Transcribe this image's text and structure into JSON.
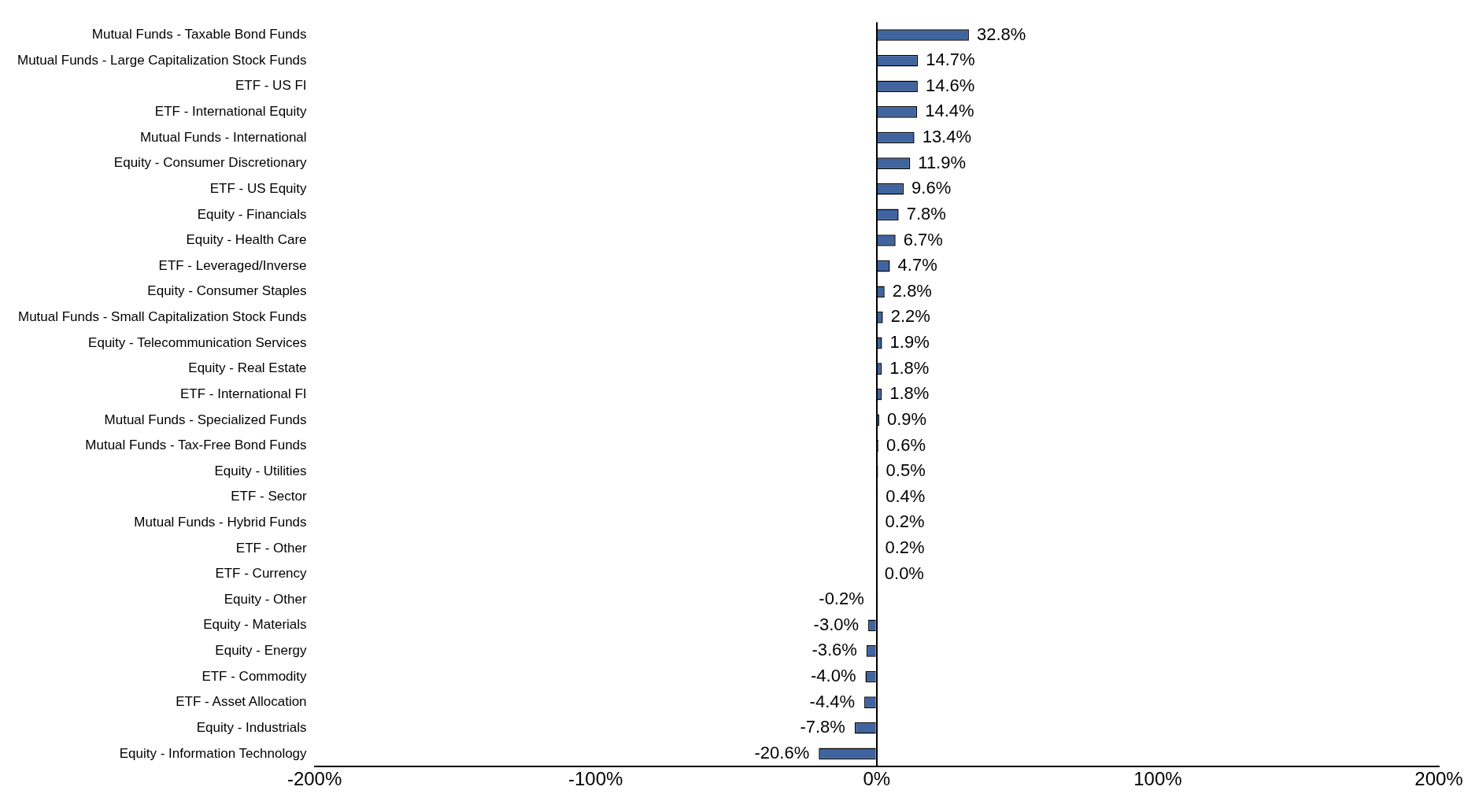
{
  "chart_data": {
    "type": "bar",
    "orientation": "horizontal",
    "categories": [
      "Mutual Funds - Taxable Bond Funds",
      "Mutual Funds - Large Capitalization Stock Funds",
      "ETF - US FI",
      "ETF - International Equity",
      "Mutual Funds - International",
      "Equity - Consumer Discretionary",
      "ETF - US Equity",
      "Equity - Financials",
      "Equity - Health Care",
      "ETF - Leveraged/Inverse",
      "Equity - Consumer Staples",
      "Mutual Funds - Small Capitalization Stock Funds",
      "Equity - Telecommunication Services",
      "Equity - Real Estate",
      "ETF - International FI",
      "Mutual Funds - Specialized Funds",
      "Mutual Funds - Tax-Free Bond Funds",
      "Equity - Utilities",
      "ETF - Sector",
      "Mutual Funds - Hybrid Funds",
      "ETF - Other",
      "ETF - Currency",
      "Equity - Other",
      "Equity - Materials",
      "Equity - Energy",
      "ETF - Commodity",
      "ETF - Asset Allocation",
      "Equity - Industrials",
      "Equity - Information Technology"
    ],
    "values": [
      32.8,
      14.7,
      14.6,
      14.4,
      13.4,
      11.9,
      9.6,
      7.8,
      6.7,
      4.7,
      2.8,
      2.2,
      1.9,
      1.8,
      1.8,
      0.9,
      0.6,
      0.5,
      0.4,
      0.2,
      0.2,
      0.0,
      -0.2,
      -3.0,
      -3.6,
      -4.0,
      -4.4,
      -7.8,
      -20.6
    ],
    "value_labels": [
      "32.8%",
      "14.7%",
      "14.6%",
      "14.4%",
      "13.4%",
      "11.9%",
      "9.6%",
      "7.8%",
      "6.7%",
      "4.7%",
      "2.8%",
      "2.2%",
      "1.9%",
      "1.8%",
      "1.8%",
      "0.9%",
      "0.6%",
      "0.5%",
      "0.4%",
      "0.2%",
      "0.2%",
      "0.0%",
      "-0.2%",
      "-3.0%",
      "-3.6%",
      "-4.0%",
      "-4.4%",
      "-7.8%",
      "-20.6%"
    ],
    "color": "#3f64a0",
    "xlim": [
      -200,
      200
    ],
    "xticks": [
      {
        "value": -200,
        "label": "-200%"
      },
      {
        "value": -100,
        "label": "-100%"
      },
      {
        "value": 0,
        "label": "0%"
      },
      {
        "value": 100,
        "label": "100%"
      },
      {
        "value": 200,
        "label": "200%"
      }
    ]
  }
}
